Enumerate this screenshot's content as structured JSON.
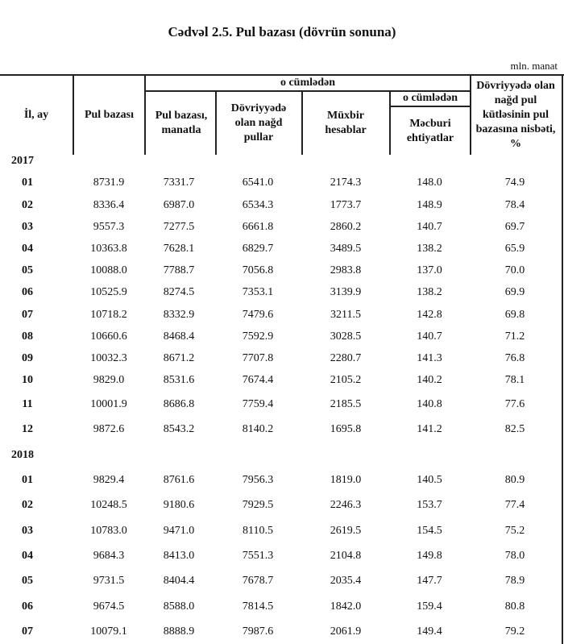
{
  "title": "Cədvəl 2.5.  Pul  bazası (dövrün sonuna)",
  "unit": "mln. manat",
  "headers": {
    "period": "İl, ay",
    "monetary_base": "Pul bazası",
    "including": "o cümlədən",
    "base_manat": "Pul  bazası, manatla",
    "cash_in_circulation": "Dövriyyədə olan nağd pullar",
    "correspondent_accounts": "Müxbir hesablar",
    "including_sub": "o cümlədən",
    "required_reserves": "Məcburi ehtiyatlar",
    "cash_ratio": "Dövriyyədə olan nağd pul kütləsinin pul bazasına nisbəti, %"
  },
  "years": [
    {
      "year": "2017",
      "rows": [
        [
          "01",
          "8731.9",
          "7331.7",
          "6541.0",
          "2174.3",
          "148.0",
          "74.9"
        ],
        [
          "02",
          "8336.4",
          "6987.0",
          "6534.3",
          "1773.7",
          "148.9",
          "78.4"
        ],
        [
          "03",
          "9557.3",
          "7277.5",
          "6661.8",
          "2860.2",
          "140.7",
          "69.7"
        ],
        [
          "04",
          "10363.8",
          "7628.1",
          "6829.7",
          "3489.5",
          "138.2",
          "65.9"
        ],
        [
          "05",
          "10088.0",
          "7788.7",
          "7056.8",
          "2983.8",
          "137.0",
          "70.0"
        ],
        [
          "06",
          "10525.9",
          "8274.5",
          "7353.1",
          "3139.9",
          "138.2",
          "69.9"
        ],
        [
          "07",
          "10718.2",
          "8332.9",
          "7479.6",
          "3211.5",
          "142.8",
          "69.8"
        ],
        [
          "08",
          "10660.6",
          "8468.4",
          "7592.9",
          "3028.5",
          "140.7",
          "71.2"
        ],
        [
          "09",
          "10032.3",
          "8671.2",
          "7707.8",
          "2280.7",
          "141.3",
          "76.8"
        ],
        [
          "10",
          "9829.0",
          "8531.6",
          "7674.4",
          "2105.2",
          "140.2",
          "78.1"
        ],
        [
          "11",
          "10001.9",
          "8686.8",
          "7759.4",
          "2185.5",
          "140.8",
          "77.6"
        ],
        [
          "12",
          "9872.6",
          "8543.2",
          "8140.2",
          "1695.8",
          "141.2",
          "82.5"
        ]
      ]
    },
    {
      "year": "2018",
      "rows": [
        [
          "01",
          "9829.4",
          "8761.6",
          "7956.3",
          "1819.0",
          "140.5",
          "80.9"
        ],
        [
          "02",
          "10248.5",
          "9180.6",
          "7929.5",
          "2246.3",
          "153.7",
          "77.4"
        ],
        [
          "03",
          "10783.0",
          "9471.0",
          "8110.5",
          "2619.5",
          "154.5",
          "75.2"
        ],
        [
          "04",
          "9684.3",
          "8413.0",
          "7551.3",
          "2104.8",
          "149.8",
          "78.0"
        ],
        [
          "05",
          "9731.5",
          "8404.4",
          "7678.7",
          "2035.4",
          "147.7",
          "78.9"
        ],
        [
          "06",
          "9674.5",
          "8588.0",
          "7814.5",
          "1842.0",
          "159.4",
          "80.8"
        ],
        [
          "07",
          "10079.1",
          "8888.9",
          "7987.6",
          "2061.9",
          "149.4",
          "79.2"
        ]
      ]
    }
  ]
}
